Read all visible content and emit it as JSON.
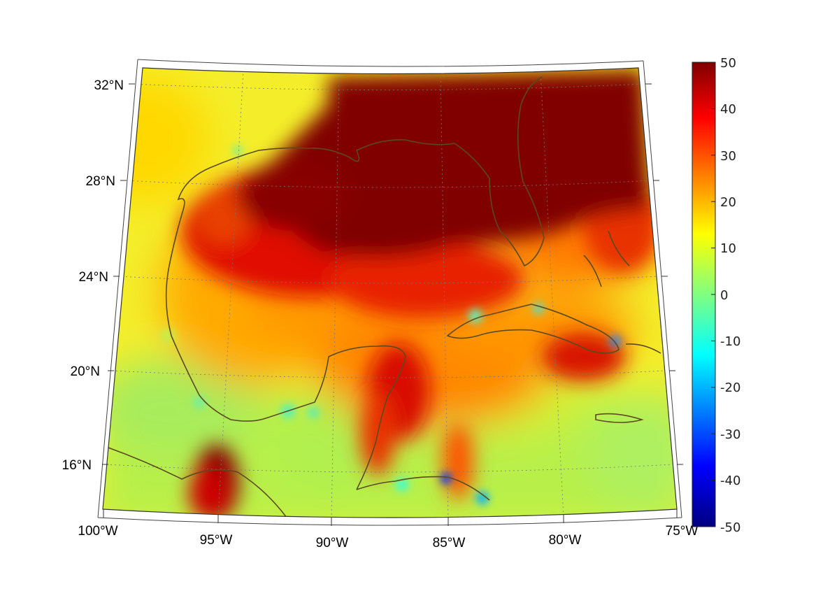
{
  "figure": {
    "type": "map",
    "projection": "conic"
  },
  "map": {
    "lon_range": [
      -100,
      -75
    ],
    "lat_range": [
      14,
      33
    ],
    "longitude_labels": [
      "100°W",
      "95°W",
      "90°W",
      "85°W",
      "80°W",
      "75°W"
    ],
    "latitude_labels": [
      "32°N",
      "28°N",
      "24°N",
      "20°N",
      "16°N"
    ],
    "graticule": "dotted",
    "coastline_color": "#5a4a1e"
  },
  "colorbar": {
    "colormap": "jet",
    "ticks": [
      "50",
      "40",
      "30",
      "20",
      "10",
      "0",
      "-10",
      "-20",
      "-30",
      "-40",
      "-50"
    ],
    "range": [
      -50,
      50
    ],
    "colors": {
      "dark_red": "#800000",
      "red": "#ff0000",
      "orange": "#ff8000",
      "yellow": "#ffff00",
      "green": "#80ff80",
      "cyan": "#00ffff",
      "blue": "#0000ff",
      "dark_blue": "#000080"
    }
  }
}
